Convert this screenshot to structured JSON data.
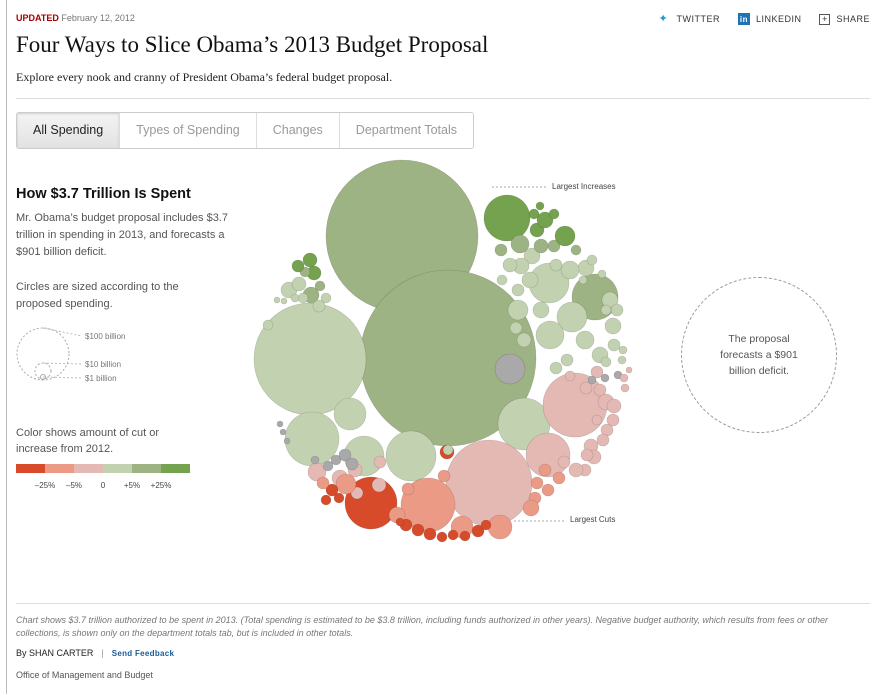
{
  "header": {
    "updated_label": "UPDATED",
    "date": "February 12, 2012",
    "title": "Four Ways to Slice Obama’s 2013 Budget Proposal",
    "deck": "Explore every nook and cranny of President Obama’s federal budget proposal."
  },
  "share": {
    "twitter": "TWITTER",
    "linkedin": "LINKEDIN",
    "share": "SHARE",
    "icons": [
      "twitter-icon",
      "linkedin-icon",
      "share-icon"
    ]
  },
  "tabs": [
    {
      "label": "All Spending",
      "active": true
    },
    {
      "label": "Types of Spending",
      "active": false
    },
    {
      "label": "Changes",
      "active": false
    },
    {
      "label": "Department Totals",
      "active": false
    }
  ],
  "sidebar": {
    "heading": "How $3.7 Trillion Is Spent",
    "intro": "Mr. Obama’s budget proposal includes $3.7 trillion in spending in 2013, and forecasts a $901 billion deficit.",
    "size_note": "Circles are sized according to the proposed spending.",
    "size_legend": [
      "$100 billion",
      "$10 billion",
      "$1 billion"
    ],
    "color_note": "Color shows amount of cut or increase from 2012.",
    "color_scale": {
      "colors": [
        "#d84b2a",
        "#eb9a86",
        "#e4b9b4",
        "#c2d2b0",
        "#9db384",
        "#74a24e"
      ],
      "labels": [
        "–25%",
        "–5%",
        "0",
        "+5%",
        "+25%"
      ]
    }
  },
  "annotations": {
    "largest_increases": "Largest Increases",
    "largest_cuts": "Largest Cuts",
    "deficit": "The proposal forecasts a $901 billion deficit."
  },
  "footer": {
    "note": "Chart shows $3.7 trillion authorized to be spent in 2013. (Total spending is estimated to be $3.8 trillion, including funds authorized in other years). Negative budget authority, which results from fees or other collections, is shown only on the department totals tab, but is included in other totals.",
    "byline": "By SHAN CARTER",
    "feedback": "Send Feedback",
    "source": "Office of Management and Budget"
  }
}
